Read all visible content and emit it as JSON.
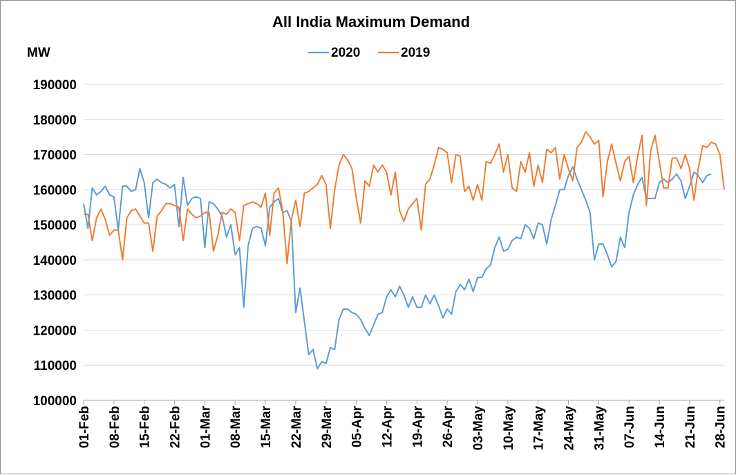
{
  "chart_data": {
    "type": "line",
    "title": "All India Maximum Demand",
    "ylabel": "MW",
    "xlabel": "",
    "ylim": [
      100000,
      190000
    ],
    "ytick_step": 10000,
    "grid": true,
    "legend_position": "top-center",
    "x_range": [
      "01-Feb",
      "30-Jun"
    ],
    "xtick_labels": [
      "01-Feb",
      "08-Feb",
      "15-Feb",
      "22-Feb",
      "01-Mar",
      "08-Mar",
      "15-Mar",
      "22-Mar",
      "29-Mar",
      "05-Apr",
      "12-Apr",
      "19-Apr",
      "26-Apr",
      "03-May",
      "10-May",
      "17-May",
      "24-May",
      "31-May",
      "07-Jun",
      "14-Jun",
      "21-Jun",
      "28-Jun"
    ],
    "series": [
      {
        "name": "2020",
        "color": "#5b9bd5",
        "values": [
          156000,
          149000,
          160500,
          158500,
          159500,
          161000,
          158500,
          158000,
          148500,
          161000,
          161000,
          159500,
          160000,
          166000,
          162000,
          152000,
          162000,
          163000,
          162000,
          161500,
          160500,
          161500,
          149500,
          163500,
          155500,
          157500,
          158000,
          157500,
          143500,
          156500,
          156000,
          154500,
          152500,
          146500,
          150000,
          141500,
          143500,
          126500,
          144000,
          149000,
          149500,
          149000,
          144000,
          155000,
          156500,
          157500,
          153500,
          154000,
          151000,
          125000,
          132000,
          122500,
          113000,
          114500,
          109000,
          111000,
          110500,
          115000,
          114500,
          123000,
          126000,
          126000,
          125000,
          124500,
          123000,
          120500,
          118500,
          121500,
          124500,
          125000,
          129500,
          131500,
          129500,
          132500,
          130000,
          126500,
          129500,
          126500,
          126500,
          130000,
          127500,
          130000,
          127000,
          123500,
          126000,
          124500,
          131000,
          133000,
          131500,
          134500,
          131000,
          135000,
          135000,
          137500,
          138500,
          143500,
          146500,
          142500,
          143000,
          145500,
          146500,
          146000,
          150000,
          149000,
          146000,
          150500,
          150000,
          144500,
          151500,
          155500,
          160000,
          160000,
          164000,
          166500,
          163000,
          160000,
          157000,
          153500,
          140000,
          144500,
          144500,
          141500,
          138000,
          139500,
          146500,
          143500,
          153500,
          158500,
          161500,
          163500,
          157500,
          157500,
          157500,
          162000,
          163000,
          162000,
          163000,
          164500,
          162500,
          157500,
          161000,
          165000,
          164000,
          162000,
          164000,
          164500
        ]
      },
      {
        "name": "2019",
        "color": "#ed7d31",
        "values": [
          153000,
          153000,
          145500,
          152000,
          154500,
          151500,
          147000,
          148500,
          148500,
          140000,
          152000,
          154000,
          154500,
          152500,
          150500,
          150500,
          142500,
          152500,
          154000,
          156000,
          156000,
          155500,
          155000,
          145500,
          154500,
          153000,
          152000,
          152500,
          153500,
          153500,
          142500,
          147000,
          153500,
          153000,
          154500,
          153500,
          145500,
          155500,
          156000,
          156500,
          156000,
          155000,
          159000,
          147000,
          159000,
          160500,
          154000,
          139000,
          151500,
          157000,
          149500,
          159000,
          159500,
          160500,
          161500,
          164000,
          161500,
          149000,
          160000,
          167000,
          170000,
          168500,
          166000,
          157500,
          150500,
          162500,
          161000,
          167000,
          165000,
          167000,
          165000,
          158500,
          165000,
          154000,
          151000,
          154500,
          156000,
          157500,
          148500,
          161500,
          163000,
          167000,
          172000,
          171500,
          170500,
          162000,
          170000,
          169500,
          159500,
          161000,
          157000,
          161500,
          157000,
          168000,
          167500,
          170000,
          173000,
          165000,
          170000,
          160500,
          159500,
          168000,
          165000,
          170500,
          161000,
          167000,
          162000,
          171500,
          170500,
          172000,
          163000,
          170000,
          166000,
          162500,
          172000,
          173500,
          176500,
          175000,
          173000,
          174000,
          158000,
          168000,
          173000,
          167500,
          162500,
          168000,
          169500,
          162000,
          169500,
          175500,
          155500,
          171000,
          175500,
          168000,
          160500,
          160500,
          169000,
          169000,
          166000,
          170000,
          166000,
          157000,
          166000,
          172500,
          172000,
          173500,
          173000,
          170000,
          160000
        ]
      }
    ]
  }
}
